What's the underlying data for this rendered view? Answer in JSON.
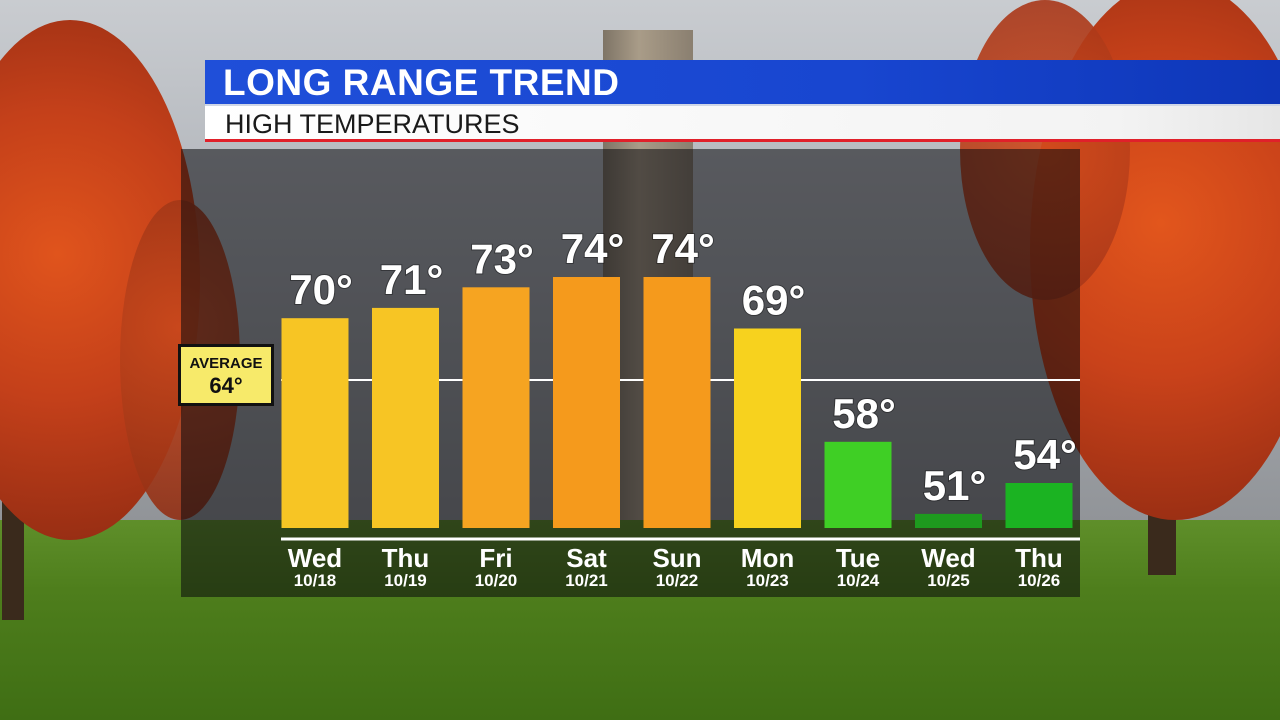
{
  "header": {
    "title": "LONG RANGE TREND",
    "subtitle": "HIGH TEMPERATURES"
  },
  "average": {
    "label": "AVERAGE",
    "value_text": "64°",
    "value": 64
  },
  "colors": {
    "title_band": "#1846d0",
    "subtitle_rule": "#e0202a",
    "average_box": "#f7ea6a"
  },
  "chart_data": {
    "type": "bar",
    "title": "HIGH TEMPERATURES",
    "categories": [
      "Wed",
      "Thu",
      "Fri",
      "Sat",
      "Sun",
      "Mon",
      "Tue",
      "Wed",
      "Thu"
    ],
    "dates": [
      "10/18",
      "10/19",
      "10/20",
      "10/21",
      "10/22",
      "10/23",
      "10/24",
      "10/25",
      "10/26"
    ],
    "values": [
      70,
      71,
      73,
      74,
      74,
      69,
      58,
      51,
      54
    ],
    "value_labels": [
      "70°",
      "71°",
      "73°",
      "74°",
      "74°",
      "69°",
      "58°",
      "51°",
      "54°"
    ],
    "bar_colors": [
      "#f7c524",
      "#f7c524",
      "#f6a421",
      "#f59a1c",
      "#f59a1c",
      "#f7d21e",
      "#3fcf25",
      "#1e9a1e",
      "#1bb322"
    ],
    "reference_line": {
      "label": "AVERAGE",
      "value": 64
    },
    "units": "°F",
    "grid": false
  }
}
